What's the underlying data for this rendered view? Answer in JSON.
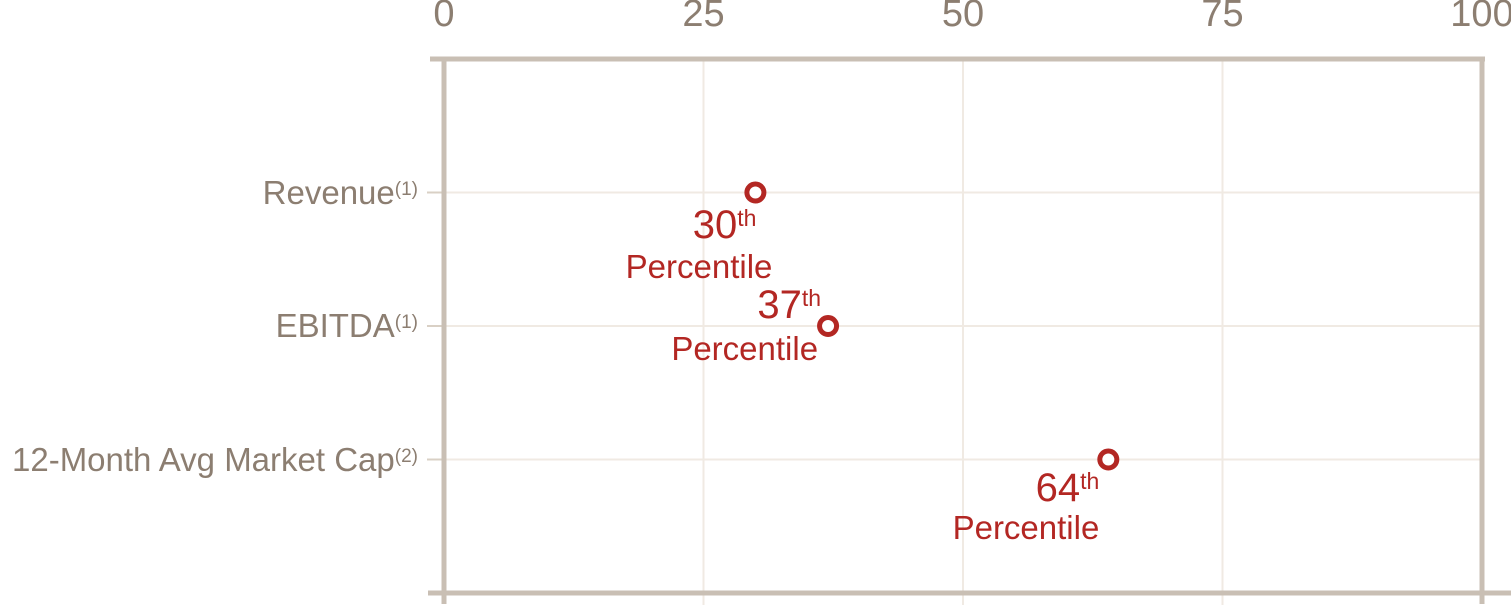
{
  "chart_data": {
    "type": "scatter",
    "title": "",
    "x_axis": {
      "position": "top",
      "range": [
        0,
        100
      ],
      "tick_values": [
        0,
        25,
        50,
        75,
        100
      ],
      "tick_labels": [
        "0",
        "25",
        "50",
        "75",
        "100"
      ],
      "gridline_values": [
        25,
        50,
        75
      ],
      "grid": true
    },
    "y_axis": {
      "categories": [
        "Revenue",
        "EBITDA",
        "12-Month Avg Market Cap"
      ],
      "category_notes": [
        "(1)",
        "(1)",
        "(2)"
      ]
    },
    "points": [
      {
        "category": "Revenue",
        "category_note": "(1)",
        "value": 30,
        "annotation_number": "30",
        "annotation_ordinal": "th",
        "annotation_word": "Percentile"
      },
      {
        "category": "EBITDA",
        "category_note": "(1)",
        "value": 37,
        "annotation_number": "37",
        "annotation_ordinal": "th",
        "annotation_word": "Percentile"
      },
      {
        "category": "12-Month Avg Market Cap",
        "category_note": "(2)",
        "value": 64,
        "annotation_number": "64",
        "annotation_ordinal": "th",
        "annotation_word": "Percentile"
      }
    ],
    "marker_style": "open-circle",
    "legend": "none",
    "colors": {
      "marker": "#b32723",
      "annotation_text": "#b32723",
      "axis_text": "#8c7e71",
      "border": "#c9bfb4",
      "gridline": "#f0eae3",
      "label_tick": "#d9d0c5",
      "background": "#ffffff"
    }
  }
}
